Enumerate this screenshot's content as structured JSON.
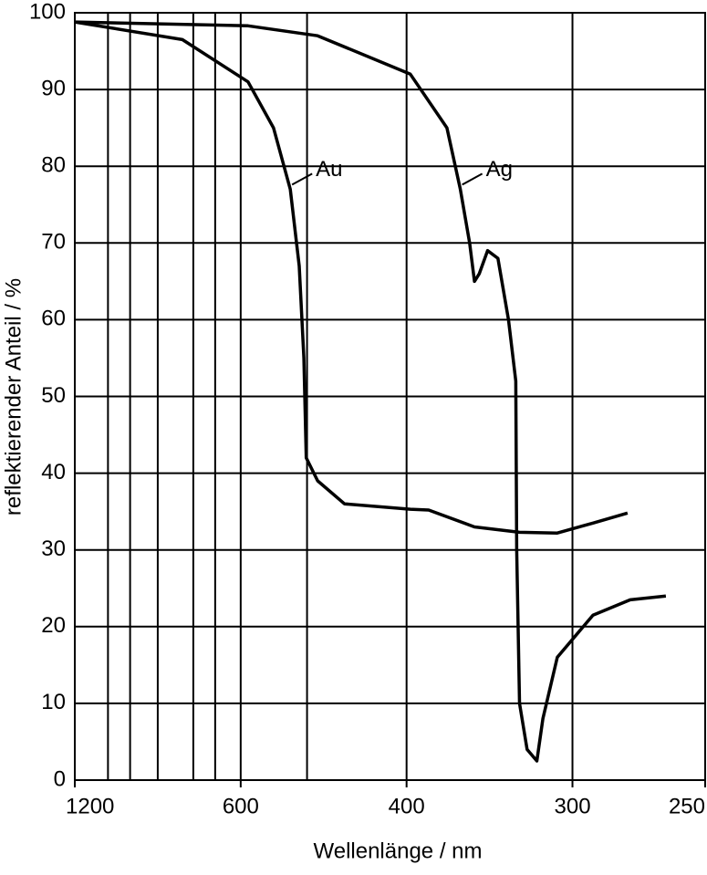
{
  "chart_data": {
    "type": "line",
    "xlabel": "Wellenlänge / nm",
    "ylabel": "reflektierender Anteil / %",
    "xscale": "reciprocal",
    "xlim": [
      1200,
      250
    ],
    "xticks": [
      1200,
      600,
      400,
      300,
      250
    ],
    "xgrid": [
      1000,
      900,
      800,
      700,
      650,
      600,
      500,
      400,
      300
    ],
    "ylim": [
      0,
      100
    ],
    "yticks": [
      0,
      10,
      20,
      30,
      40,
      50,
      60,
      70,
      80,
      90,
      100
    ],
    "grid": true,
    "series": [
      {
        "name": "Au",
        "color": "#000000",
        "x": [
          1200,
          728,
          587,
          546,
          522,
          510,
          504,
          501,
          487,
          457,
          397,
          383,
          352,
          326,
          307,
          291,
          277
        ],
        "values": [
          98.8,
          96.5,
          91,
          85,
          77,
          67,
          55,
          42,
          39,
          36,
          35.3,
          35.2,
          33,
          32.3,
          32.2,
          33.5,
          34.8
        ]
      },
      {
        "name": "Ag",
        "color": "#000000",
        "x": [
          1200,
          587,
          487,
          397,
          370,
          361,
          355,
          352,
          349,
          344,
          338,
          332,
          328,
          327.5,
          326,
          322,
          317,
          314,
          307,
          291,
          276,
          263
        ],
        "values": [
          98.8,
          98.3,
          97,
          92,
          85,
          77,
          70,
          65,
          66,
          69,
          68,
          60,
          52,
          30,
          10,
          4,
          2.5,
          8,
          16,
          21.5,
          23.5,
          24
        ]
      }
    ]
  }
}
